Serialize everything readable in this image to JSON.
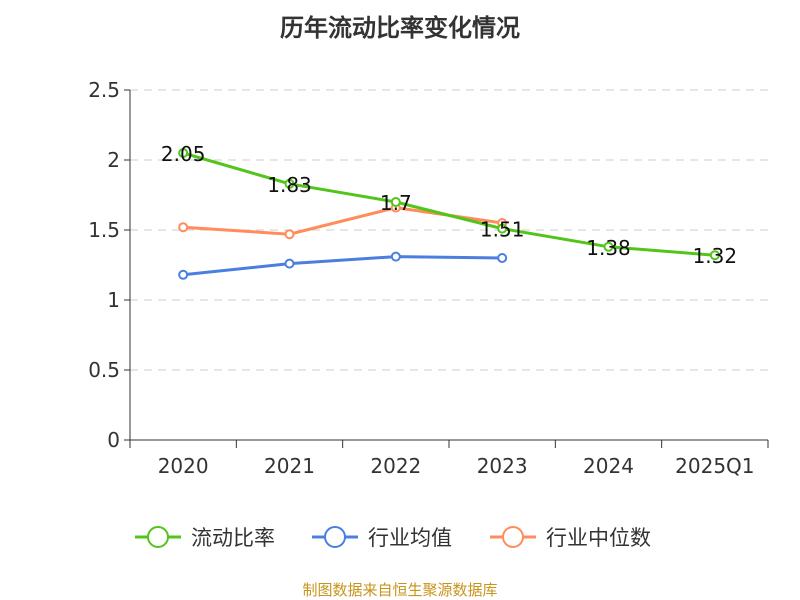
{
  "chart_data": {
    "type": "line",
    "title": "历年流动比率变化情况",
    "categories": [
      "2020",
      "2021",
      "2022",
      "2023",
      "2024",
      "2025Q1"
    ],
    "ylim": [
      0,
      2.5
    ],
    "yticks": [
      "0",
      "0.5",
      "1",
      "1.5",
      "2",
      "2.5"
    ],
    "series": [
      {
        "name": "流动比率",
        "color": "#52c41a",
        "values": [
          2.05,
          1.83,
          1.7,
          1.51,
          1.38,
          1.32
        ],
        "labels": [
          "2.05",
          "1.83",
          "1.7",
          "1.51",
          "1.38",
          "1.32"
        ]
      },
      {
        "name": "行业均值",
        "color": "#4a7fe0",
        "values": [
          1.18,
          1.26,
          1.31,
          1.3,
          null,
          null
        ]
      },
      {
        "name": "行业中位数",
        "color": "#ff8c5a",
        "values": [
          1.52,
          1.47,
          1.66,
          1.55,
          null,
          null
        ]
      }
    ],
    "legend": "bottom",
    "grid": true
  },
  "source": "制图数据来自恒生聚源数据库"
}
